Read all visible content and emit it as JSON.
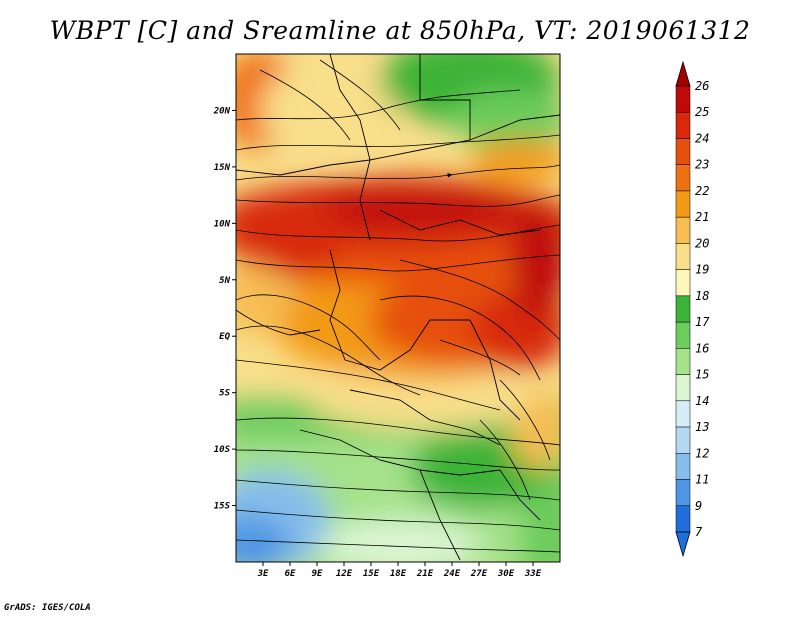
{
  "title": "WBPT [C] and Sreamline at 850hPa, VT: 2019061312",
  "footer": "GrADS: IGES/COLA",
  "map": {
    "lon_range": [
      0,
      36
    ],
    "lat_range": [
      -20,
      25
    ],
    "lat_ticks": [
      {
        "label": "20N",
        "value": 20
      },
      {
        "label": "15N",
        "value": 15
      },
      {
        "label": "10N",
        "value": 10
      },
      {
        "label": "5N",
        "value": 5
      },
      {
        "label": "EQ",
        "value": 0
      },
      {
        "label": "5S",
        "value": -5
      },
      {
        "label": "10S",
        "value": -10
      },
      {
        "label": "15S",
        "value": -15
      }
    ],
    "lon_ticks": [
      {
        "label": "3E",
        "value": 3
      },
      {
        "label": "6E",
        "value": 6
      },
      {
        "label": "9E",
        "value": 9
      },
      {
        "label": "12E",
        "value": 12
      },
      {
        "label": "15E",
        "value": 15
      },
      {
        "label": "18E",
        "value": 18
      },
      {
        "label": "21E",
        "value": 21
      },
      {
        "label": "24E",
        "value": 24
      },
      {
        "label": "27E",
        "value": 27
      },
      {
        "label": "30E",
        "value": 30
      },
      {
        "label": "33E",
        "value": 33
      }
    ]
  },
  "colorbar": {
    "levels": [
      {
        "label": "26",
        "color": "#a00000"
      },
      {
        "label": "25",
        "color": "#c00a0a"
      },
      {
        "label": "24",
        "color": "#d8290c"
      },
      {
        "label": "23",
        "color": "#e6500f"
      },
      {
        "label": "22",
        "color": "#ef7212"
      },
      {
        "label": "21",
        "color": "#f39a16"
      },
      {
        "label": "20",
        "color": "#f6bd52"
      },
      {
        "label": "19",
        "color": "#f9df8a"
      },
      {
        "label": "18",
        "color": "#fdf7bc"
      },
      {
        "label": "17",
        "color": "#3cb339"
      },
      {
        "label": "16",
        "color": "#6ccc5c"
      },
      {
        "label": "15",
        "color": "#a6e28b"
      },
      {
        "label": "14",
        "color": "#dcf6d4"
      },
      {
        "label": "13",
        "color": "#d6ecf7"
      },
      {
        "label": "12",
        "color": "#b2d8f2"
      },
      {
        "label": "11",
        "color": "#86bdeb"
      },
      {
        "label": "9",
        "color": "#4f97e4"
      },
      {
        "label": "7",
        "color": "#1f6edc"
      }
    ],
    "bottom_color": "#1f6edc"
  }
}
